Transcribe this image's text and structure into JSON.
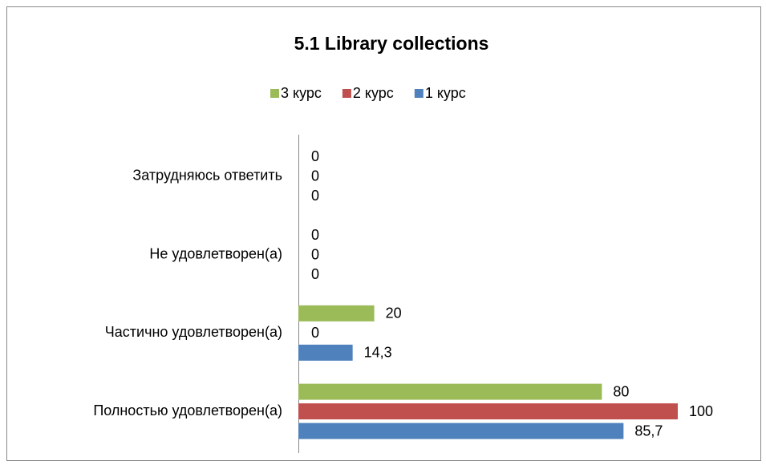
{
  "chart_data": {
    "type": "bar",
    "orientation": "horizontal",
    "title": "5.1 Library collections",
    "categories": [
      "Полностью удовлетворен(а)",
      "Частично удовлетворен(а)",
      "Не удовлетворен(а)",
      "Затрудняюсь ответить"
    ],
    "series": [
      {
        "name": "1 курс",
        "color": "#4f81bd",
        "values": [
          85.7,
          14.3,
          0,
          0
        ],
        "value_labels": [
          "85,7",
          "14,3",
          "0",
          "0"
        ]
      },
      {
        "name": "2 курс",
        "color": "#c0504d",
        "values": [
          100,
          0,
          0,
          0
        ]
      },
      {
        "name": "3 курс",
        "color": "#9bbb59",
        "values": [
          80,
          20,
          0,
          0
        ]
      }
    ],
    "xlim": [
      0,
      100
    ]
  }
}
